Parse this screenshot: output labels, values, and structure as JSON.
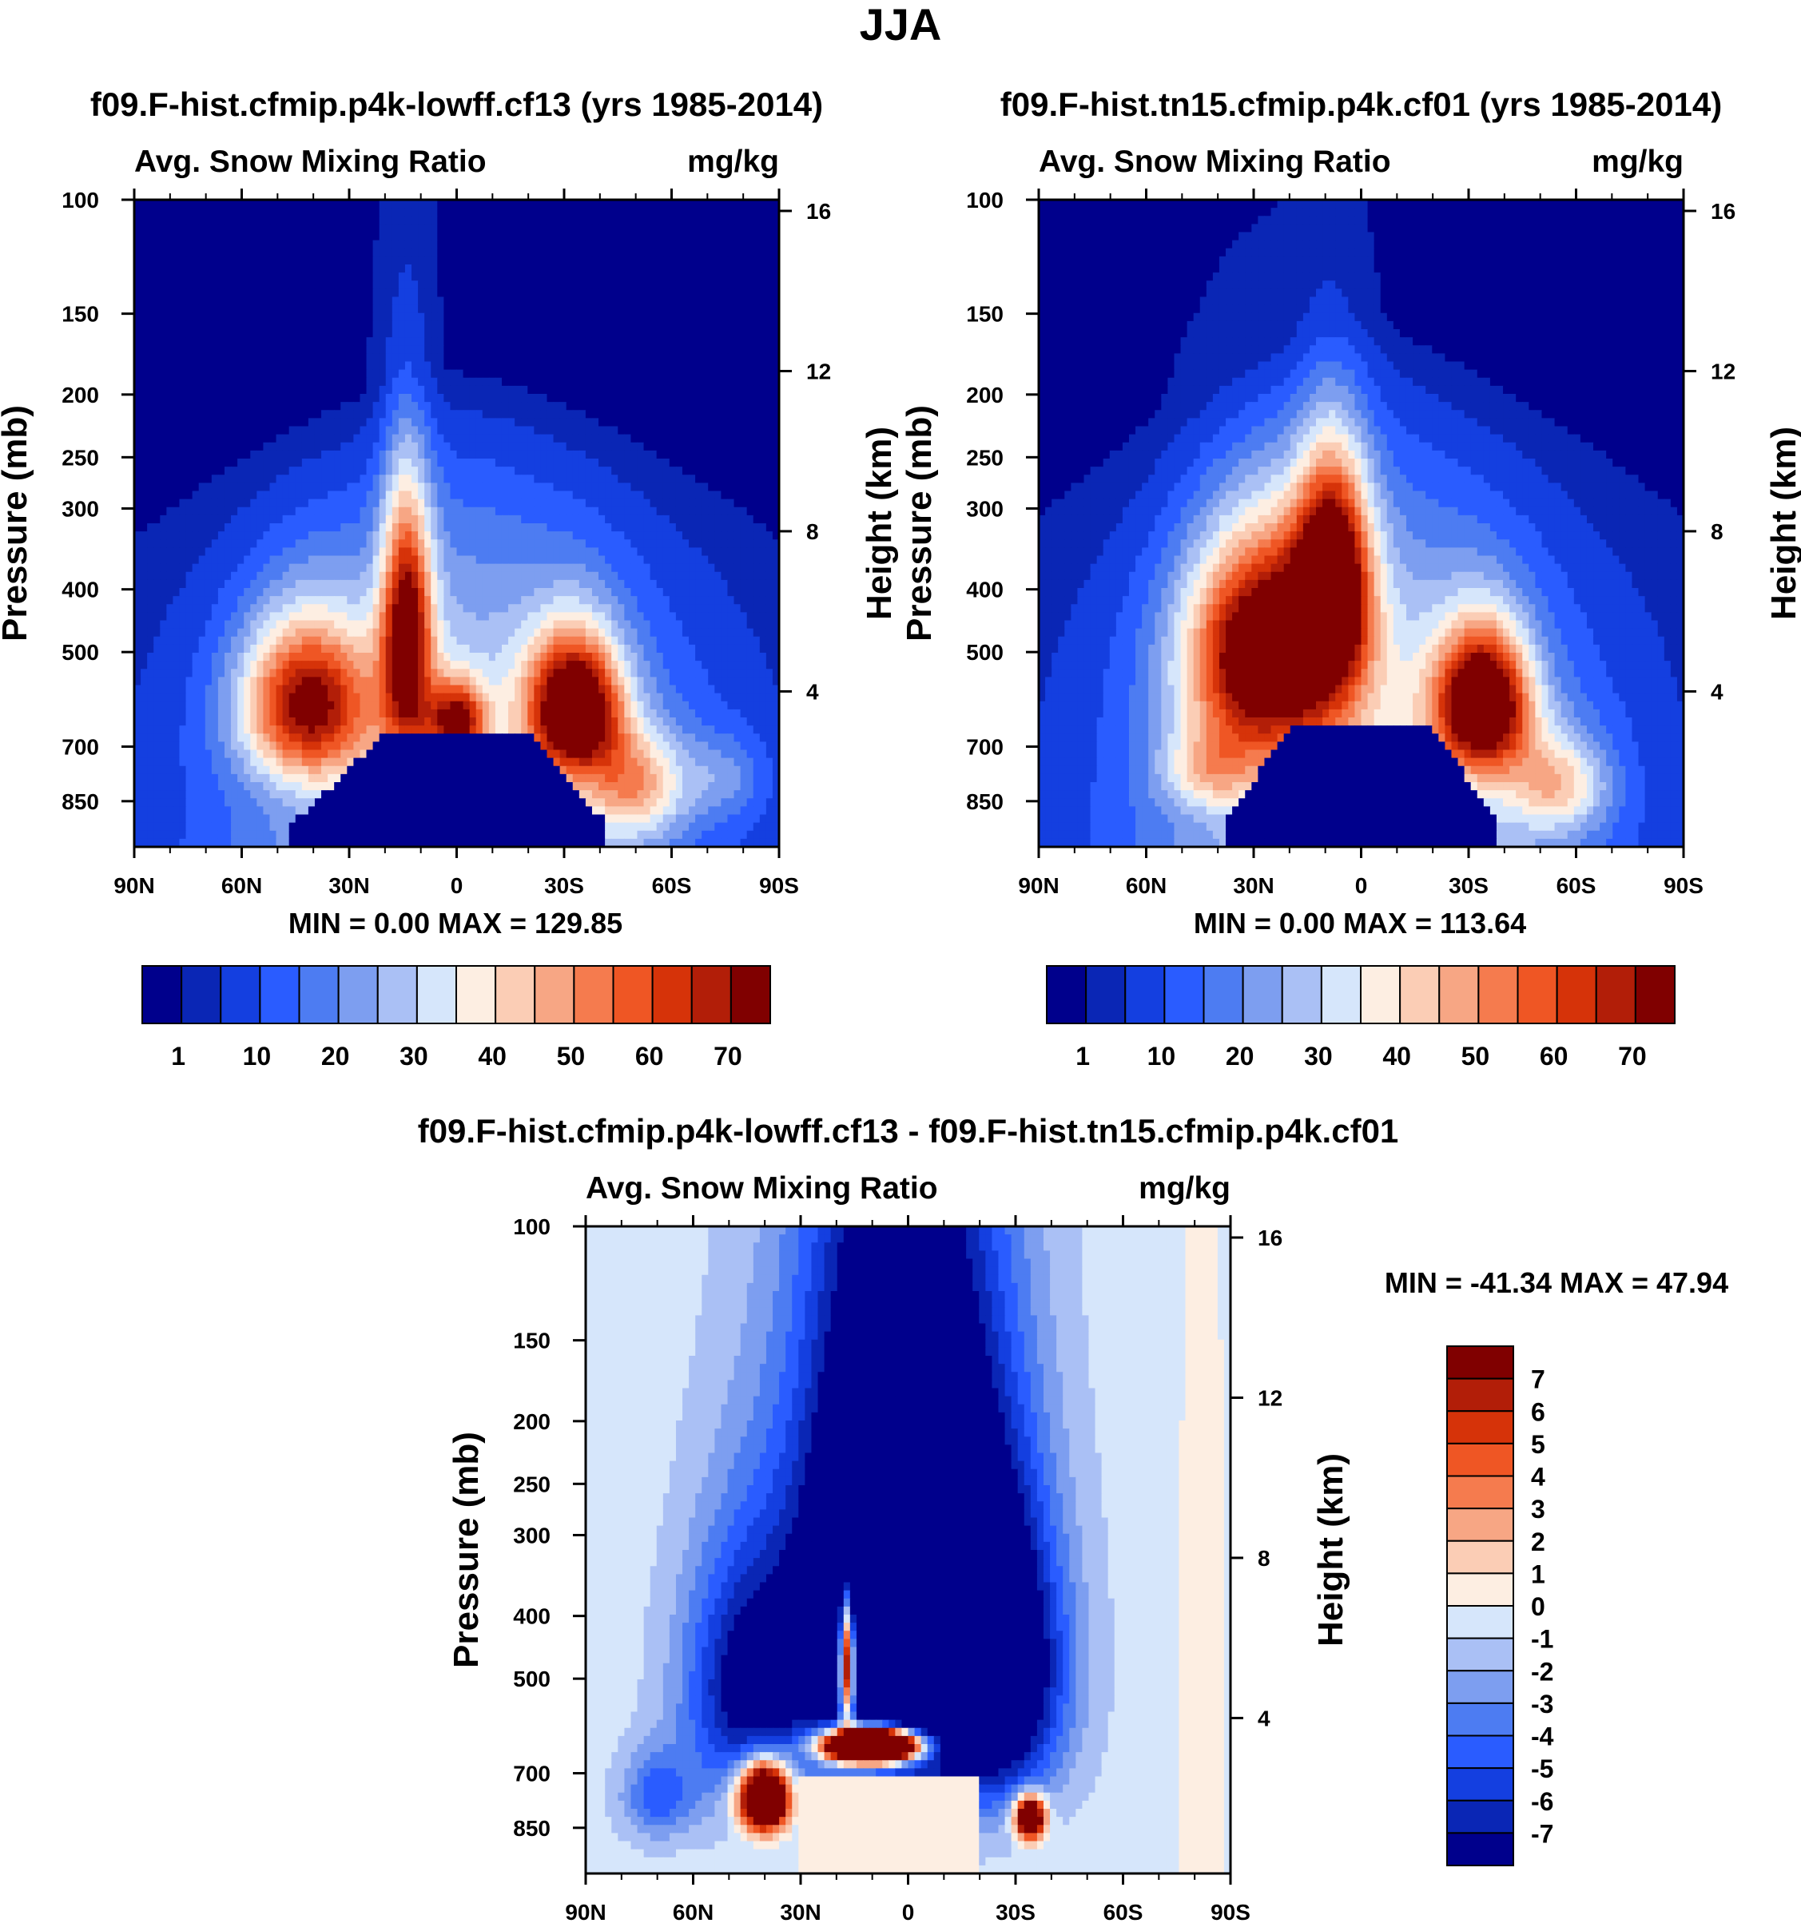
{
  "page": {
    "title": "JJA"
  },
  "colors": {
    "abs_scale": [
      "#00008c",
      "#0a26b5",
      "#143fe0",
      "#2a5cff",
      "#4d7cf2",
      "#7d9ef0",
      "#aac0f5",
      "#d6e6fb",
      "#fdeee2",
      "#fbcdb5",
      "#f7a684",
      "#f57b4e",
      "#ef5624",
      "#d63309",
      "#b21e08",
      "#800000"
    ],
    "diff_scale": [
      "#00008c",
      "#0a26b5",
      "#143fe0",
      "#2a5cff",
      "#4d7cf2",
      "#7d9ef0",
      "#aac0f5",
      "#d6e6fb",
      "#fdeee2",
      "#fbcdb5",
      "#f7a684",
      "#f57b4e",
      "#ef5624",
      "#d63309",
      "#b21e08",
      "#800000"
    ]
  },
  "chart_data": [
    {
      "type": "heatmap",
      "title": "f09.F-hist.cfmip.p4k-lowff.cf13 (yrs 1985-2014)",
      "left_string": "Avg. Snow Mixing Ratio",
      "right_string": "mg/kg",
      "ylabel": "Pressure (mb)",
      "ylabel_right": "Height (km)",
      "x_ticks": [
        "90N",
        "60N",
        "30N",
        "0",
        "30S",
        "60S",
        "90S"
      ],
      "y_ticks": [
        "100",
        "150",
        "200",
        "250",
        "300",
        "400",
        "500",
        "700",
        "850"
      ],
      "y_right_ticks": [
        "16",
        "12",
        "8",
        "4"
      ],
      "min_max": "MIN =   0.00  MAX = 129.85",
      "colorbar_labels": [
        "1",
        "10",
        "20",
        "30",
        "40",
        "50",
        "60",
        "70"
      ],
      "colorbar_orientation": "horizontal",
      "features": {
        "left_peak": {
          "lat": 42,
          "p": 620,
          "v": 66
        },
        "tower": {
          "lat": 14,
          "p": 460,
          "v": 80
        },
        "equator_band": {
          "lat": 0,
          "p": 600,
          "v": 72
        },
        "right_peak": {
          "lat": -33,
          "p": 610,
          "v": 82
        },
        "surface_plateau_top_mb": 660
      }
    },
    {
      "type": "heatmap",
      "title": "f09.F-hist.tn15.cfmip.p4k.cf01 (yrs 1985-2014)",
      "left_string": "Avg. Snow Mixing Ratio",
      "right_string": "mg/kg",
      "ylabel": "Pressure (mb)",
      "ylabel_right": "Height (km)",
      "x_ticks": [
        "90N",
        "60N",
        "30N",
        "0",
        "30S",
        "60S",
        "90S"
      ],
      "y_ticks": [
        "100",
        "150",
        "200",
        "250",
        "300",
        "400",
        "500",
        "700",
        "850"
      ],
      "y_right_ticks": [
        "16",
        "12",
        "8",
        "4"
      ],
      "min_max": "MIN =   0.00  MAX = 113.64",
      "colorbar_labels": [
        "1",
        "10",
        "20",
        "30",
        "40",
        "50",
        "60",
        "70"
      ],
      "colorbar_orientation": "horizontal",
      "features": {
        "left_peak": {
          "lat": 24,
          "p": 480,
          "v": 88
        },
        "tower": {
          "lat": 8,
          "p": 380,
          "v": 85
        },
        "right_peak": {
          "lat": -34,
          "p": 600,
          "v": 85
        },
        "surface_plateau_top_mb": 650
      }
    },
    {
      "type": "heatmap",
      "title": "f09.F-hist.cfmip.p4k-lowff.cf13 - f09.F-hist.tn15.cfmip.p4k.cf01",
      "left_string": "Avg. Snow Mixing Ratio",
      "right_string": "mg/kg",
      "ylabel": "Pressure (mb)",
      "ylabel_right": "Height (km)",
      "x_ticks": [
        "90N",
        "60N",
        "30N",
        "0",
        "30S",
        "60S",
        "90S"
      ],
      "y_ticks": [
        "100",
        "150",
        "200",
        "250",
        "300",
        "400",
        "500",
        "700",
        "850"
      ],
      "y_right_ticks": [
        "16",
        "12",
        "8",
        "4"
      ],
      "min_max": "MIN = -41.34  MAX =  47.94",
      "colorbar_labels": [
        "7",
        "6",
        "5",
        "4",
        "3",
        "2",
        "1",
        "0",
        "-1",
        "-2",
        "-3",
        "-4",
        "-5",
        "-6",
        "-7"
      ],
      "colorbar_orientation": "vertical",
      "features": {
        "negative_dome_center": {
          "lat": 0,
          "p": 300,
          "v": -15
        },
        "positive_shelf": {
          "lat": 10,
          "p": 640,
          "v": 20
        },
        "positive_left_surface": {
          "lat": 40,
          "p": 760,
          "v": 12
        },
        "positive_right_surface": {
          "lat": -34,
          "p": 820,
          "v": 10
        }
      }
    }
  ]
}
